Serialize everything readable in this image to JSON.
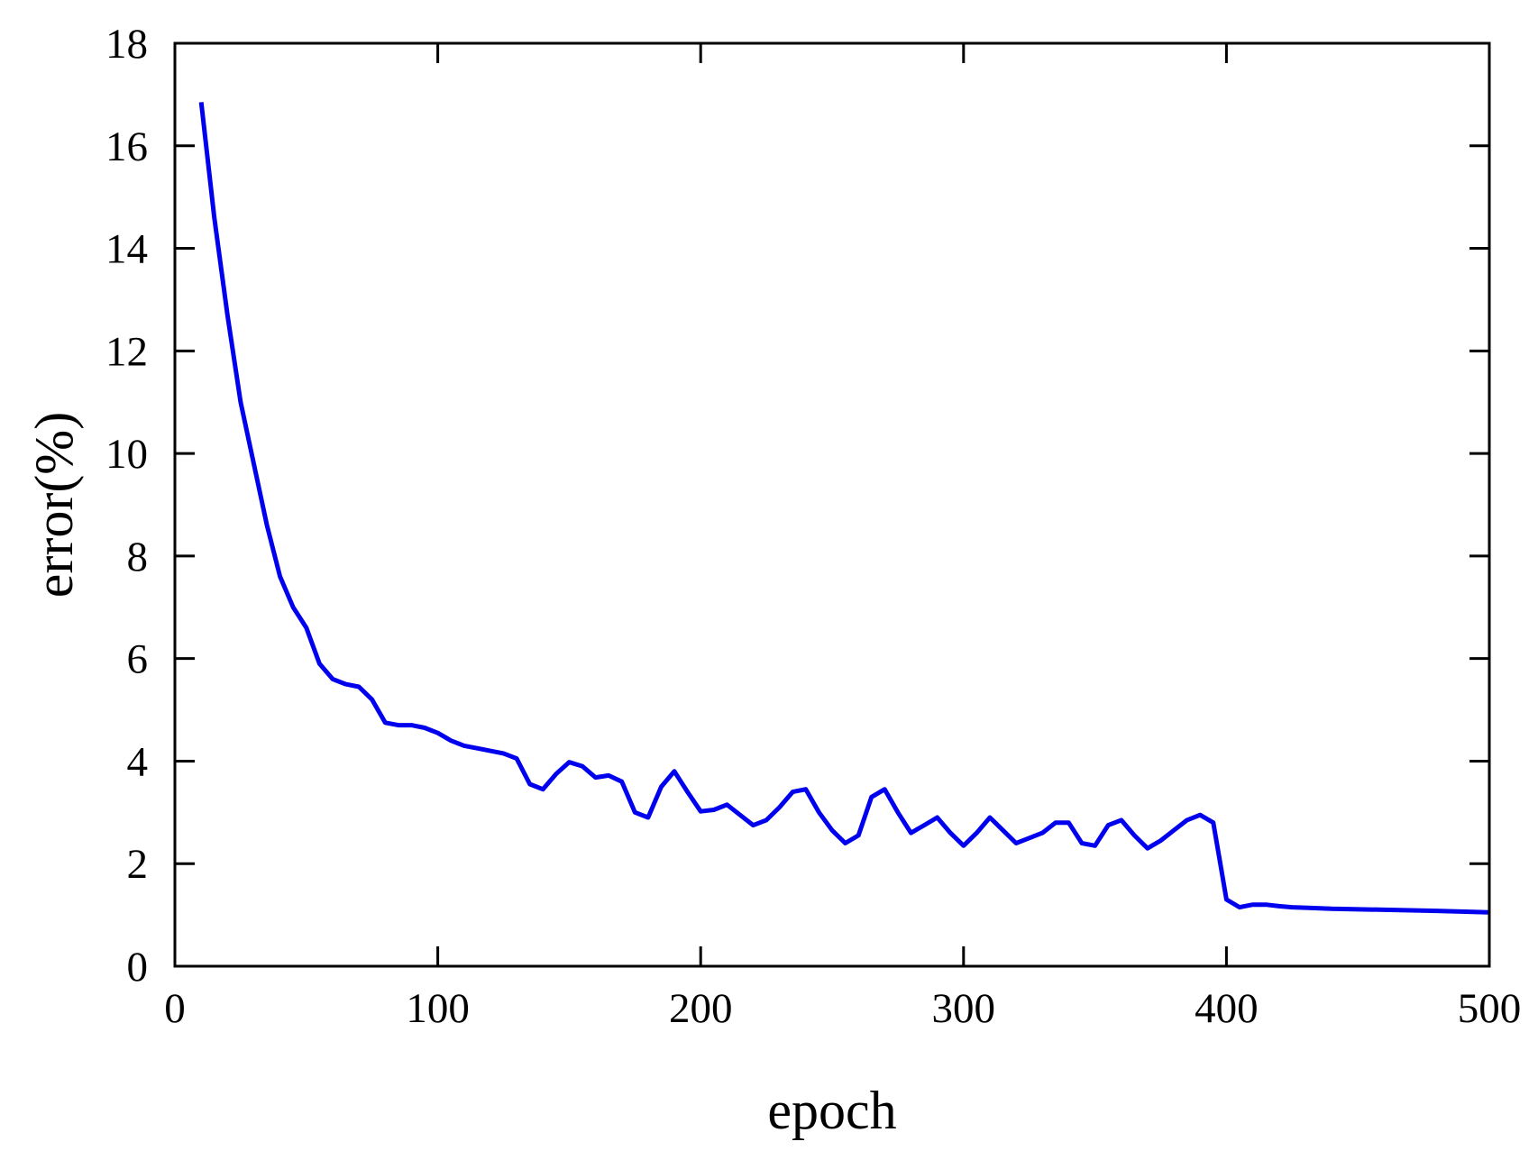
{
  "chart_data": {
    "type": "line",
    "xlabel": "epoch",
    "ylabel": "error(%)",
    "xlim": [
      0,
      500
    ],
    "ylim": [
      0,
      18
    ],
    "xticks": [
      0,
      100,
      200,
      300,
      400,
      500
    ],
    "yticks": [
      0,
      2,
      4,
      6,
      8,
      10,
      12,
      14,
      16,
      18
    ],
    "grid": false,
    "legend": "none",
    "series": [
      {
        "color": "#0000ee",
        "x": [
          10,
          15,
          20,
          25,
          30,
          35,
          40,
          45,
          50,
          55,
          60,
          65,
          70,
          75,
          80,
          85,
          90,
          95,
          100,
          105,
          110,
          115,
          120,
          125,
          130,
          135,
          140,
          145,
          150,
          155,
          160,
          165,
          170,
          175,
          180,
          185,
          190,
          195,
          200,
          205,
          210,
          215,
          220,
          225,
          230,
          235,
          240,
          245,
          250,
          255,
          260,
          265,
          270,
          275,
          280,
          285,
          290,
          295,
          300,
          305,
          310,
          315,
          320,
          325,
          330,
          335,
          340,
          345,
          350,
          355,
          360,
          365,
          370,
          375,
          380,
          385,
          390,
          395,
          398,
          400,
          405,
          410,
          415,
          420,
          425,
          430,
          440,
          460,
          480,
          500
        ],
        "y": [
          16.85,
          14.6,
          12.7,
          11.0,
          9.8,
          8.6,
          7.6,
          7.0,
          6.6,
          5.9,
          5.6,
          5.5,
          5.45,
          5.2,
          4.75,
          4.7,
          4.7,
          4.65,
          4.55,
          4.4,
          4.3,
          4.25,
          4.2,
          4.15,
          4.05,
          3.55,
          3.45,
          3.75,
          3.98,
          3.9,
          3.68,
          3.72,
          3.6,
          3.0,
          2.9,
          3.5,
          3.8,
          3.4,
          3.02,
          3.05,
          3.15,
          2.95,
          2.75,
          2.85,
          3.1,
          3.4,
          3.45,
          3.0,
          2.65,
          2.4,
          2.55,
          3.3,
          3.45,
          3.0,
          2.6,
          2.75,
          2.9,
          2.6,
          2.35,
          2.6,
          2.9,
          2.65,
          2.4,
          2.5,
          2.6,
          2.8,
          2.8,
          2.4,
          2.35,
          2.75,
          2.85,
          2.55,
          2.3,
          2.45,
          2.65,
          2.85,
          2.95,
          2.8,
          1.9,
          1.3,
          1.15,
          1.2,
          1.2,
          1.17,
          1.15,
          1.14,
          1.12,
          1.1,
          1.08,
          1.05
        ]
      }
    ]
  }
}
